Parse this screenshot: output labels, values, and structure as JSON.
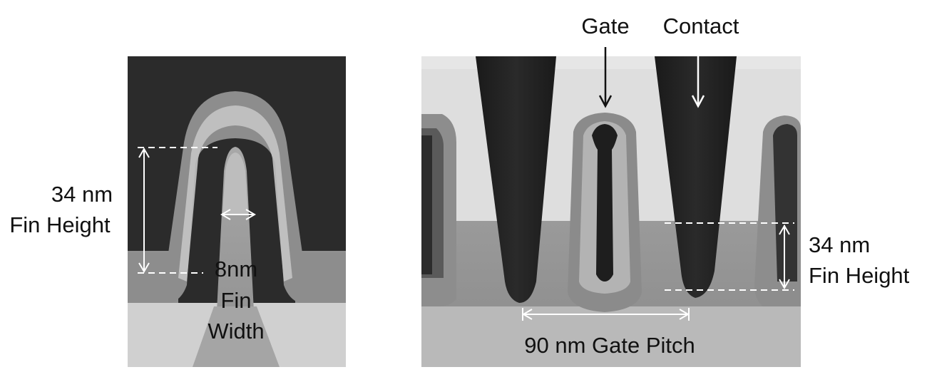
{
  "left_panel": {
    "fin_height_value": "34 nm",
    "fin_height_caption": "Fin Height",
    "fin_width_value": "8nm",
    "fin_width_line2": "Fin",
    "fin_width_line3": "Width"
  },
  "right_panel": {
    "gate_label": "Gate",
    "contact_label": "Contact",
    "fin_height_value": "34 nm",
    "fin_height_caption": "Fin Height",
    "gate_pitch_label": "90 nm Gate Pitch"
  }
}
